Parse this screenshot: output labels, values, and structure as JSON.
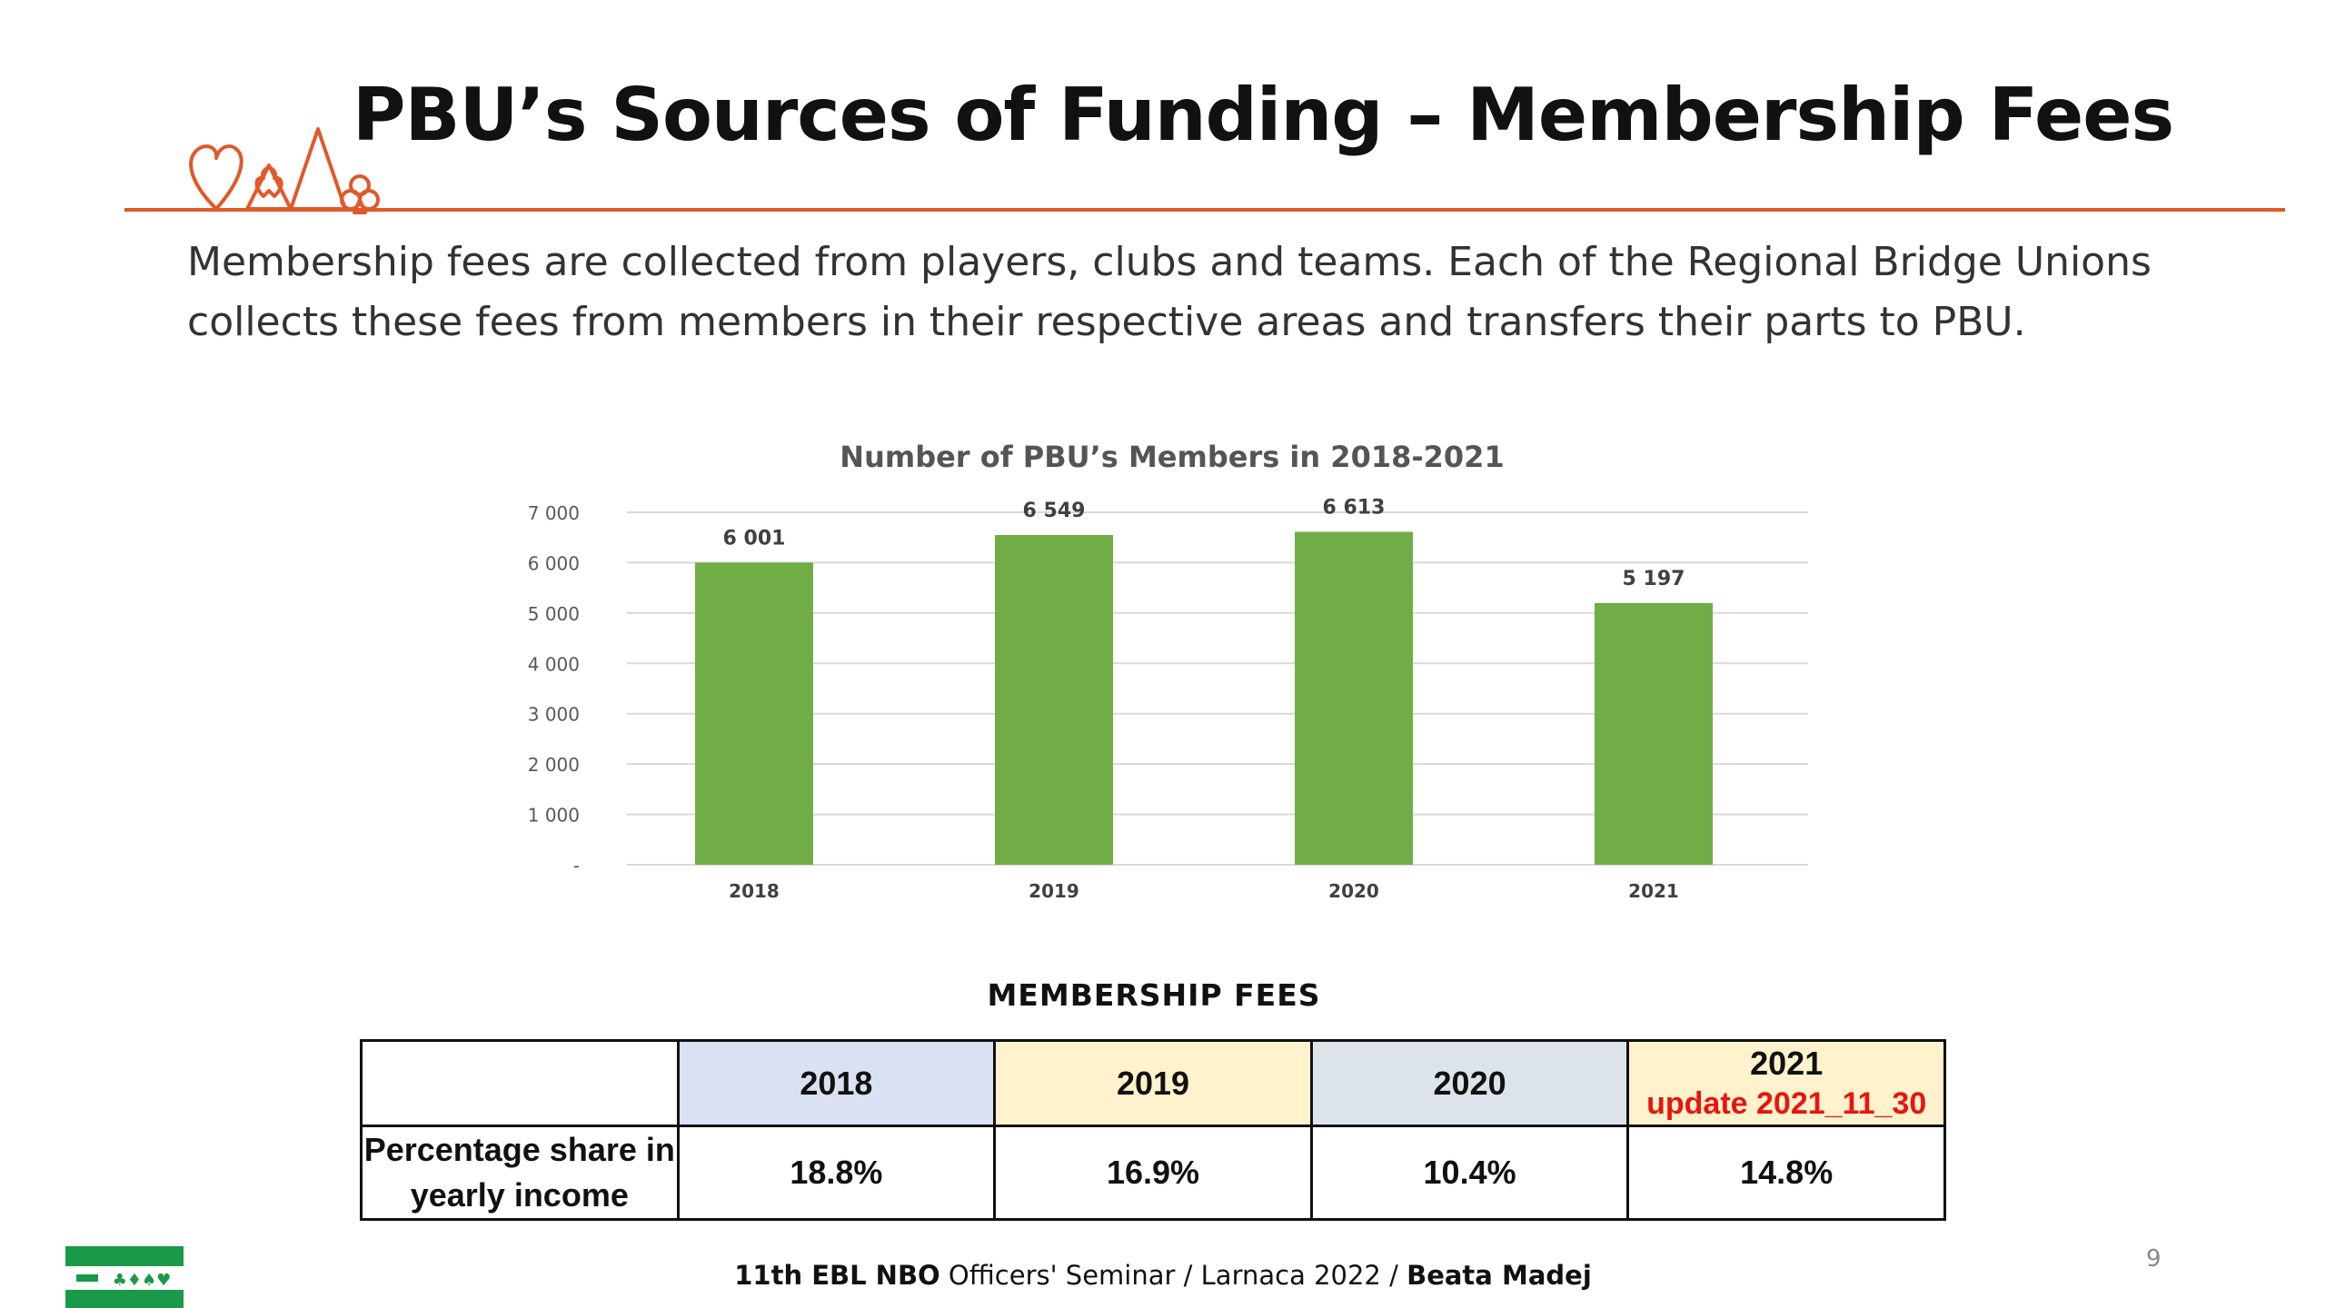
{
  "slide": {
    "title": "PBU’s Sources of Funding – Membership Fees",
    "intro": "Membership fees are collected from players, clubs and teams. Each of the Regional Bridge Unions collects these fees from members in their respective areas and transfers their parts to PBU.",
    "page_number": "9",
    "accent_color": "#e0592a"
  },
  "chart_data": {
    "type": "bar",
    "title": "Number of PBU’s Members in 2018-2021",
    "categories": [
      "2018",
      "2019",
      "2020",
      "2021"
    ],
    "values": [
      6001,
      6549,
      6613,
      5197
    ],
    "value_labels": [
      "6 001",
      "6 549",
      "6 613",
      "5 197"
    ],
    "yticks": [
      0,
      1000,
      2000,
      3000,
      4000,
      5000,
      6000,
      7000
    ],
    "ytick_labels": [
      "-",
      "1 000",
      "2 000",
      "3 000",
      "4 000",
      "5 000",
      "6 000",
      "7 000"
    ],
    "ylim": [
      0,
      7000
    ],
    "bar_color": "#70ad47",
    "grid": true
  },
  "fees_table": {
    "title": "MEMBERSHIP FEES",
    "headers": [
      "",
      "2018",
      "2019",
      "2020",
      "2021"
    ],
    "update_note": "update 2021_11_30",
    "row_label": "Percentage share in yearly income",
    "values": [
      "18.8%",
      "16.9%",
      "10.4%",
      "14.8%"
    ]
  },
  "footer": {
    "event_bold": "11th EBL NBO",
    "event_rest": " Officers' Seminar / Larnaca 2022 / ",
    "author": "Beata Madej"
  }
}
